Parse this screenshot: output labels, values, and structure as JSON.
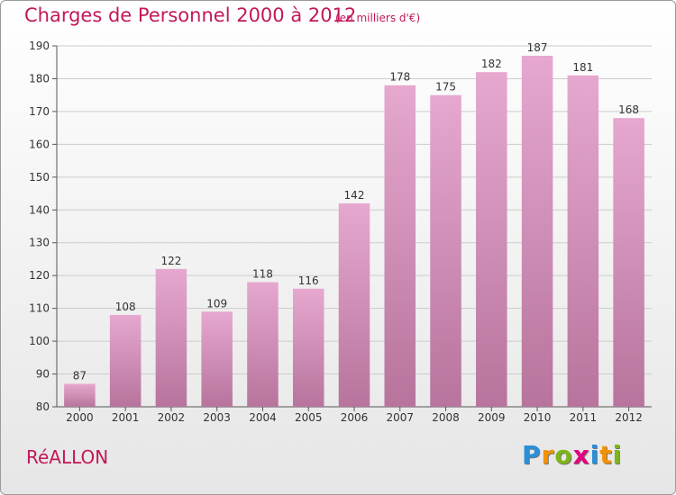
{
  "title": "Charges de Personnel 2000 à 2012",
  "unit": "(en milliers d'€)",
  "commune": "RéALLON",
  "logo": {
    "letters": [
      "P",
      "r",
      "o",
      "x",
      "i",
      "t",
      "i"
    ],
    "colors": [
      "#2a8fd6",
      "#f39200",
      "#7cb518",
      "#e5007e",
      "#2a8fd6",
      "#f39200",
      "#7cb518"
    ]
  },
  "colors": {
    "bar_top": "#e6a8cf",
    "bar_bottom": "#b7749c",
    "grid": "#cccccc",
    "title": "#c2185b"
  },
  "chart_data": {
    "type": "bar",
    "categories": [
      "2000",
      "2001",
      "2002",
      "2003",
      "2004",
      "2005",
      "2006",
      "2007",
      "2008",
      "2009",
      "2010",
      "2011",
      "2012"
    ],
    "values": [
      87,
      108,
      122,
      109,
      118,
      116,
      142,
      178,
      175,
      182,
      187,
      181,
      168
    ],
    "title": "Charges de Personnel 2000 à 2012",
    "xlabel": "",
    "ylabel": "",
    "ylim": [
      80,
      190
    ],
    "yticks": [
      80,
      90,
      100,
      110,
      120,
      130,
      140,
      150,
      160,
      170,
      180,
      190
    ],
    "grid": true,
    "legend": "none"
  }
}
